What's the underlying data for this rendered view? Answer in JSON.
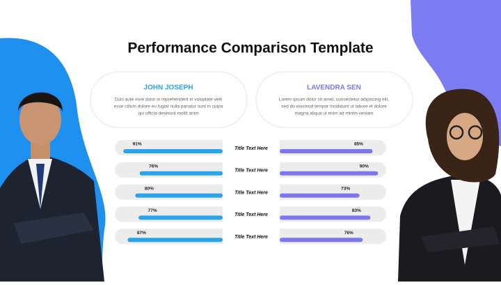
{
  "chart_data": {
    "type": "bar",
    "title": "Performance Comparison Template",
    "categories": [
      "Title Text Here",
      "Title Text Here",
      "Title Text Here",
      "Title Text Here",
      "Title Text Here"
    ],
    "series": [
      {
        "name": "JOHN JOSEPH",
        "color": "#2aa3e8",
        "description": [
          "Duis aute irure dolor in reprehenderit in voluptate velit",
          "esse cillum dolore eu fugiat nulla pariatur sunt in culpa",
          "qui officia deserunt mollit anim"
        ],
        "values": [
          91,
          76,
          80,
          77,
          87
        ],
        "value_labels": [
          "91%",
          "76%",
          "80%",
          "77%",
          "87%"
        ]
      },
      {
        "name": "LAVENDRA SEN",
        "color": "#7a78ec",
        "description": [
          "Lorem ipsum dolor sit amet, consectetur adipiscing elit,",
          "sed do eiusmod tempor incididunt ut labore et dolore",
          "magna aliqua ut enim ad minim veniam"
        ],
        "values": [
          85,
          90,
          73,
          83,
          76
        ],
        "value_labels": [
          "85%",
          "90%",
          "73%",
          "83%",
          "76%"
        ]
      }
    ]
  }
}
